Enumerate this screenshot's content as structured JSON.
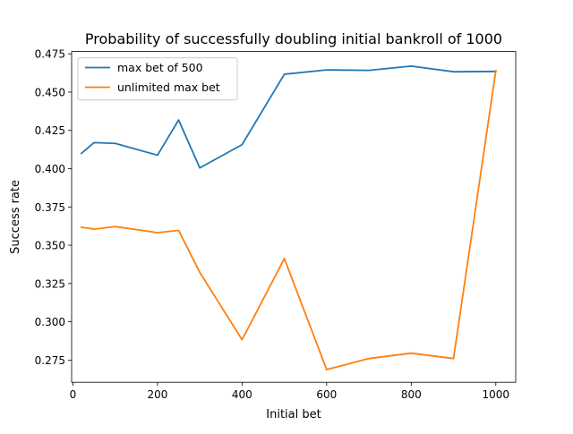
{
  "chart_data": {
    "type": "line",
    "title": "Probability of successfully doubling initial bankroll of 1000",
    "xlabel": "Initial bet",
    "ylabel": "Success rate",
    "xlim": [
      -3,
      1047
    ],
    "ylim": [
      0.2605,
      0.4765
    ],
    "x_ticks": [
      0,
      200,
      400,
      600,
      800,
      1000
    ],
    "y_ticks": [
      0.275,
      0.3,
      0.325,
      0.35,
      0.375,
      0.4,
      0.425,
      0.45,
      0.475
    ],
    "grid": false,
    "legend_position": "upper-left",
    "x": [
      20,
      50,
      100,
      200,
      250,
      300,
      400,
      500,
      600,
      700,
      800,
      900,
      1000
    ],
    "series": [
      {
        "name": "max bet of 500",
        "color": "#1f77b4",
        "values": [
          0.41,
          0.417,
          0.4165,
          0.4088,
          0.4318,
          0.4005,
          0.4157,
          0.4617,
          0.4645,
          0.4642,
          0.467,
          0.4633,
          0.4635
        ]
      },
      {
        "name": "unlimited max bet",
        "color": "#ff7f0e",
        "values": [
          0.3618,
          0.3605,
          0.3622,
          0.3582,
          0.3597,
          0.3323,
          0.2883,
          0.3413,
          0.2688,
          0.276,
          0.2795,
          0.276,
          0.464
        ]
      }
    ]
  }
}
